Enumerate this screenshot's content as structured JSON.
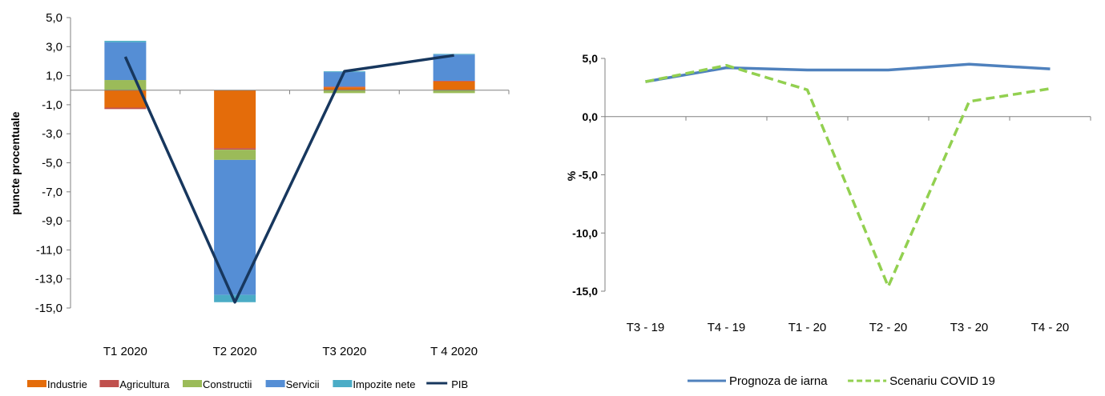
{
  "chart_data": [
    {
      "type": "bar",
      "subtype": "stacked-bar-with-line",
      "title": "",
      "xlabel": "",
      "ylabel": "puncte procentuale",
      "ylim": [
        -15,
        5
      ],
      "yticks": [
        "5,0",
        "3,0",
        "1,0",
        "-1,0",
        "-3,0",
        "-5,0",
        "-7,0",
        "-9,0",
        "-11,0",
        "-13,0",
        "-15,0"
      ],
      "categories": [
        "T1 2020",
        "T2 2020",
        "T3 2020",
        "T 4 2020"
      ],
      "series": [
        {
          "name": "Industrie",
          "color": "#E46C0A",
          "values": [
            -1.2,
            -4.0,
            0.2,
            0.6
          ]
        },
        {
          "name": "Agricultura",
          "color": "#C0504D",
          "values": [
            -0.1,
            -0.1,
            0.05,
            0.05
          ]
        },
        {
          "name": "Constructii",
          "color": "#9BBB59",
          "values": [
            0.7,
            -0.7,
            -0.2,
            -0.2
          ]
        },
        {
          "name": "Servicii",
          "color": "#558ED5",
          "values": [
            2.6,
            -9.3,
            1.0,
            1.8
          ]
        },
        {
          "name": "Impozite nete",
          "color": "#4BACC6",
          "values": [
            0.1,
            -0.5,
            0.05,
            0.05
          ]
        }
      ],
      "line": {
        "name": "PIB",
        "color": "#17375E",
        "values": [
          2.3,
          -14.6,
          1.3,
          2.4
        ]
      },
      "legend_position": "bottom"
    },
    {
      "type": "line",
      "title": "",
      "xlabel": "",
      "ylabel": "%",
      "ylim": [
        -15,
        5
      ],
      "yticks": [
        "5,0",
        "0,0",
        "-5,0",
        "-10,0",
        "-15,0"
      ],
      "categories": [
        "T3 - 19",
        "T4 - 19",
        "T1 - 20",
        "T2 - 20",
        "T3 - 20",
        "T4 - 20"
      ],
      "series": [
        {
          "name": "Prognoza de iarna",
          "color": "#4F81BD",
          "dash": "solid",
          "values": [
            3.0,
            4.2,
            4.0,
            4.0,
            4.5,
            4.1
          ]
        },
        {
          "name": "Scenariu COVID 19",
          "color": "#92D050",
          "dash": "dashed",
          "values": [
            3.0,
            4.4,
            2.3,
            -14.6,
            1.3,
            2.4
          ]
        }
      ],
      "legend_position": "bottom"
    }
  ]
}
